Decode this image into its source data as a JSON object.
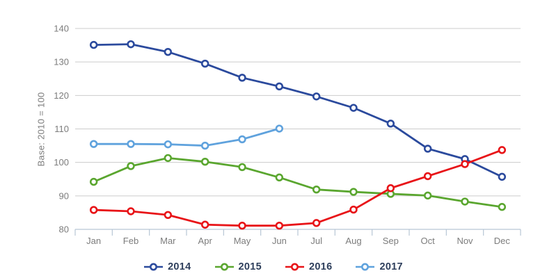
{
  "chart_data": {
    "type": "line",
    "categories": [
      "Jan",
      "Feb",
      "Mar",
      "Apr",
      "May",
      "Jun",
      "Jul",
      "Aug",
      "Sep",
      "Oct",
      "Nov",
      "Dec"
    ],
    "series": [
      {
        "name": "2014",
        "color": "#2b4a9d",
        "values": [
          135.1,
          135.3,
          133.0,
          129.5,
          125.3,
          122.7,
          119.7,
          116.3,
          111.6,
          104.1,
          101.0,
          95.7
        ]
      },
      {
        "name": "2015",
        "color": "#5aa62f",
        "values": [
          94.2,
          98.9,
          101.3,
          100.2,
          98.6,
          95.5,
          91.9,
          91.2,
          90.6,
          90.1,
          88.3,
          86.7
        ]
      },
      {
        "name": "2016",
        "color": "#e81418",
        "values": [
          85.8,
          85.4,
          84.3,
          81.4,
          81.1,
          81.1,
          81.9,
          85.9,
          92.3,
          95.9,
          99.5,
          103.7
        ]
      },
      {
        "name": "2017",
        "color": "#5fa2dd",
        "values": [
          105.5,
          105.5,
          105.4,
          105.0,
          106.9,
          110.1
        ]
      }
    ],
    "title": "",
    "xlabel": "",
    "ylabel": "Base: 2010 = 100",
    "ylim": [
      80,
      140
    ],
    "yticks": [
      80,
      90,
      100,
      110,
      120,
      130,
      140
    ],
    "grid": true,
    "legend_position": "bottom",
    "marker_style": "open-circle"
  },
  "style": {
    "background": "#ffffff",
    "grid_color": "#cccccc",
    "axis_color": "#b7c6d5",
    "tick_label_color": "#7c7c7c",
    "legend_text_color": "#2e3f5c"
  }
}
